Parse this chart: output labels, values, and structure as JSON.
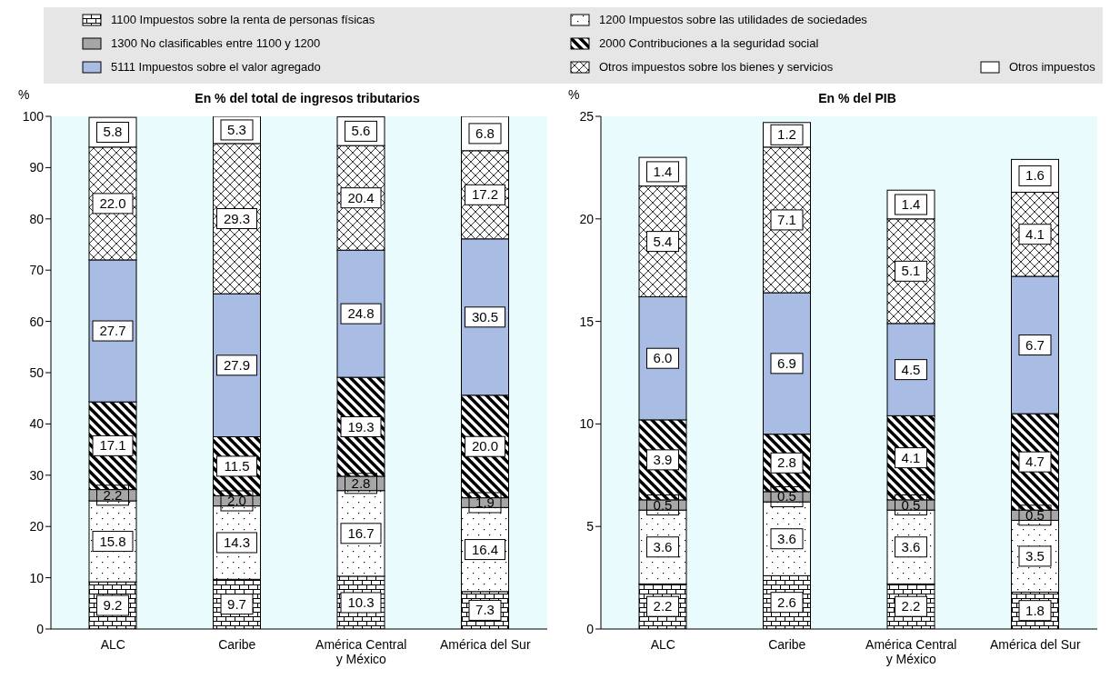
{
  "chart_data": [
    {
      "type": "bar",
      "stacked": true,
      "title": "En % del total de ingresos tributarios",
      "ylabel": "%",
      "categories": [
        "ALC",
        "Caribe",
        "América Central y México",
        "América del Sur"
      ],
      "ylim": [
        0,
        100
      ],
      "yticks": [
        0,
        10,
        20,
        30,
        40,
        50,
        60,
        70,
        80,
        90,
        100
      ],
      "legend": "top",
      "grid": false,
      "series": [
        {
          "name": "1100 Impuestos sobre la renta de personas físicas",
          "color": "#ffffff",
          "values": [
            9.2,
            9.7,
            10.3,
            7.3
          ],
          "value_labels": [
            "9.2",
            "9.7",
            "10.3",
            "7.3"
          ]
        },
        {
          "name": "1200 Impuestos sobre las utilidades de sociedades",
          "color": "#ffffff",
          "values": [
            15.8,
            14.3,
            16.7,
            16.4
          ],
          "value_labels": [
            "15.8",
            "14.3",
            "16.7",
            "16.4"
          ]
        },
        {
          "name": "1300 No clasificables entre 1100 y 1200",
          "color": "#a6a6a6",
          "values": [
            2.2,
            2.0,
            2.8,
            1.9
          ],
          "value_labels": [
            "2.2",
            "2.0",
            "2.8",
            "1.9"
          ]
        },
        {
          "name": "2000 Contribuciones a la seguridad social",
          "color": "#ffffff",
          "values": [
            17.1,
            11.5,
            19.3,
            20.0
          ],
          "value_labels": [
            "17.1",
            "11.5",
            "19.3",
            "20.0"
          ]
        },
        {
          "name": "5111 Impuestos sobre el valor agregado",
          "color": "#a9bce3",
          "values": [
            27.7,
            27.9,
            24.8,
            30.5
          ],
          "value_labels": [
            "27.7",
            "27.9",
            "24.8",
            "30.5"
          ]
        },
        {
          "name": "Otros impuestos sobre los bienes y servicios",
          "color": "#ffffff",
          "values": [
            22.0,
            29.3,
            20.4,
            17.2
          ],
          "value_labels": [
            "22.0",
            "29.3",
            "20.4",
            "17.2"
          ]
        },
        {
          "name": "Otros impuestos",
          "color": "#ffffff",
          "values": [
            5.8,
            5.3,
            5.6,
            6.8
          ],
          "value_labels": [
            "5.8",
            "5.3",
            "5.6",
            "6.8"
          ]
        }
      ]
    },
    {
      "type": "bar",
      "stacked": true,
      "title": "En % del PIB",
      "ylabel": "%",
      "categories": [
        "ALC",
        "Caribe",
        "América Central y México",
        "América del Sur"
      ],
      "ylim": [
        0,
        25
      ],
      "yticks": [
        0,
        5,
        10,
        15,
        20,
        25
      ],
      "grid": false,
      "series": [
        {
          "color": "#ffffff",
          "values": [
            2.2,
            2.6,
            2.2,
            1.8
          ],
          "value_labels": [
            "2.2",
            "2.6",
            "2.2",
            "1.8"
          ]
        },
        {
          "color": "#ffffff",
          "values": [
            3.6,
            3.6,
            3.6,
            3.5
          ],
          "value_labels": [
            "3.6",
            "3.6",
            "3.6",
            "3.5"
          ]
        },
        {
          "color": "#a6a6a6",
          "values": [
            0.5,
            0.5,
            0.5,
            0.5
          ],
          "value_labels": [
            "0.5",
            "0.5",
            "0.5",
            "0.5"
          ]
        },
        {
          "color": "#ffffff",
          "values": [
            3.9,
            2.8,
            4.1,
            4.7
          ],
          "value_labels": [
            "3.9",
            "2.8",
            "4.1",
            "4.7"
          ]
        },
        {
          "color": "#a9bce3",
          "values": [
            6.0,
            6.9,
            4.5,
            6.7
          ],
          "value_labels": [
            "6.0",
            "6.9",
            "4.5",
            "6.7"
          ]
        },
        {
          "color": "#ffffff",
          "values": [
            5.4,
            7.1,
            5.1,
            4.1
          ],
          "value_labels": [
            "5.4",
            "7.1",
            "5.1",
            "4.1"
          ]
        },
        {
          "color": "#ffffff",
          "values": [
            1.4,
            1.2,
            1.4,
            1.6
          ],
          "value_labels": [
            "1.4",
            "1.2",
            "1.4",
            "1.6"
          ]
        }
      ]
    }
  ]
}
